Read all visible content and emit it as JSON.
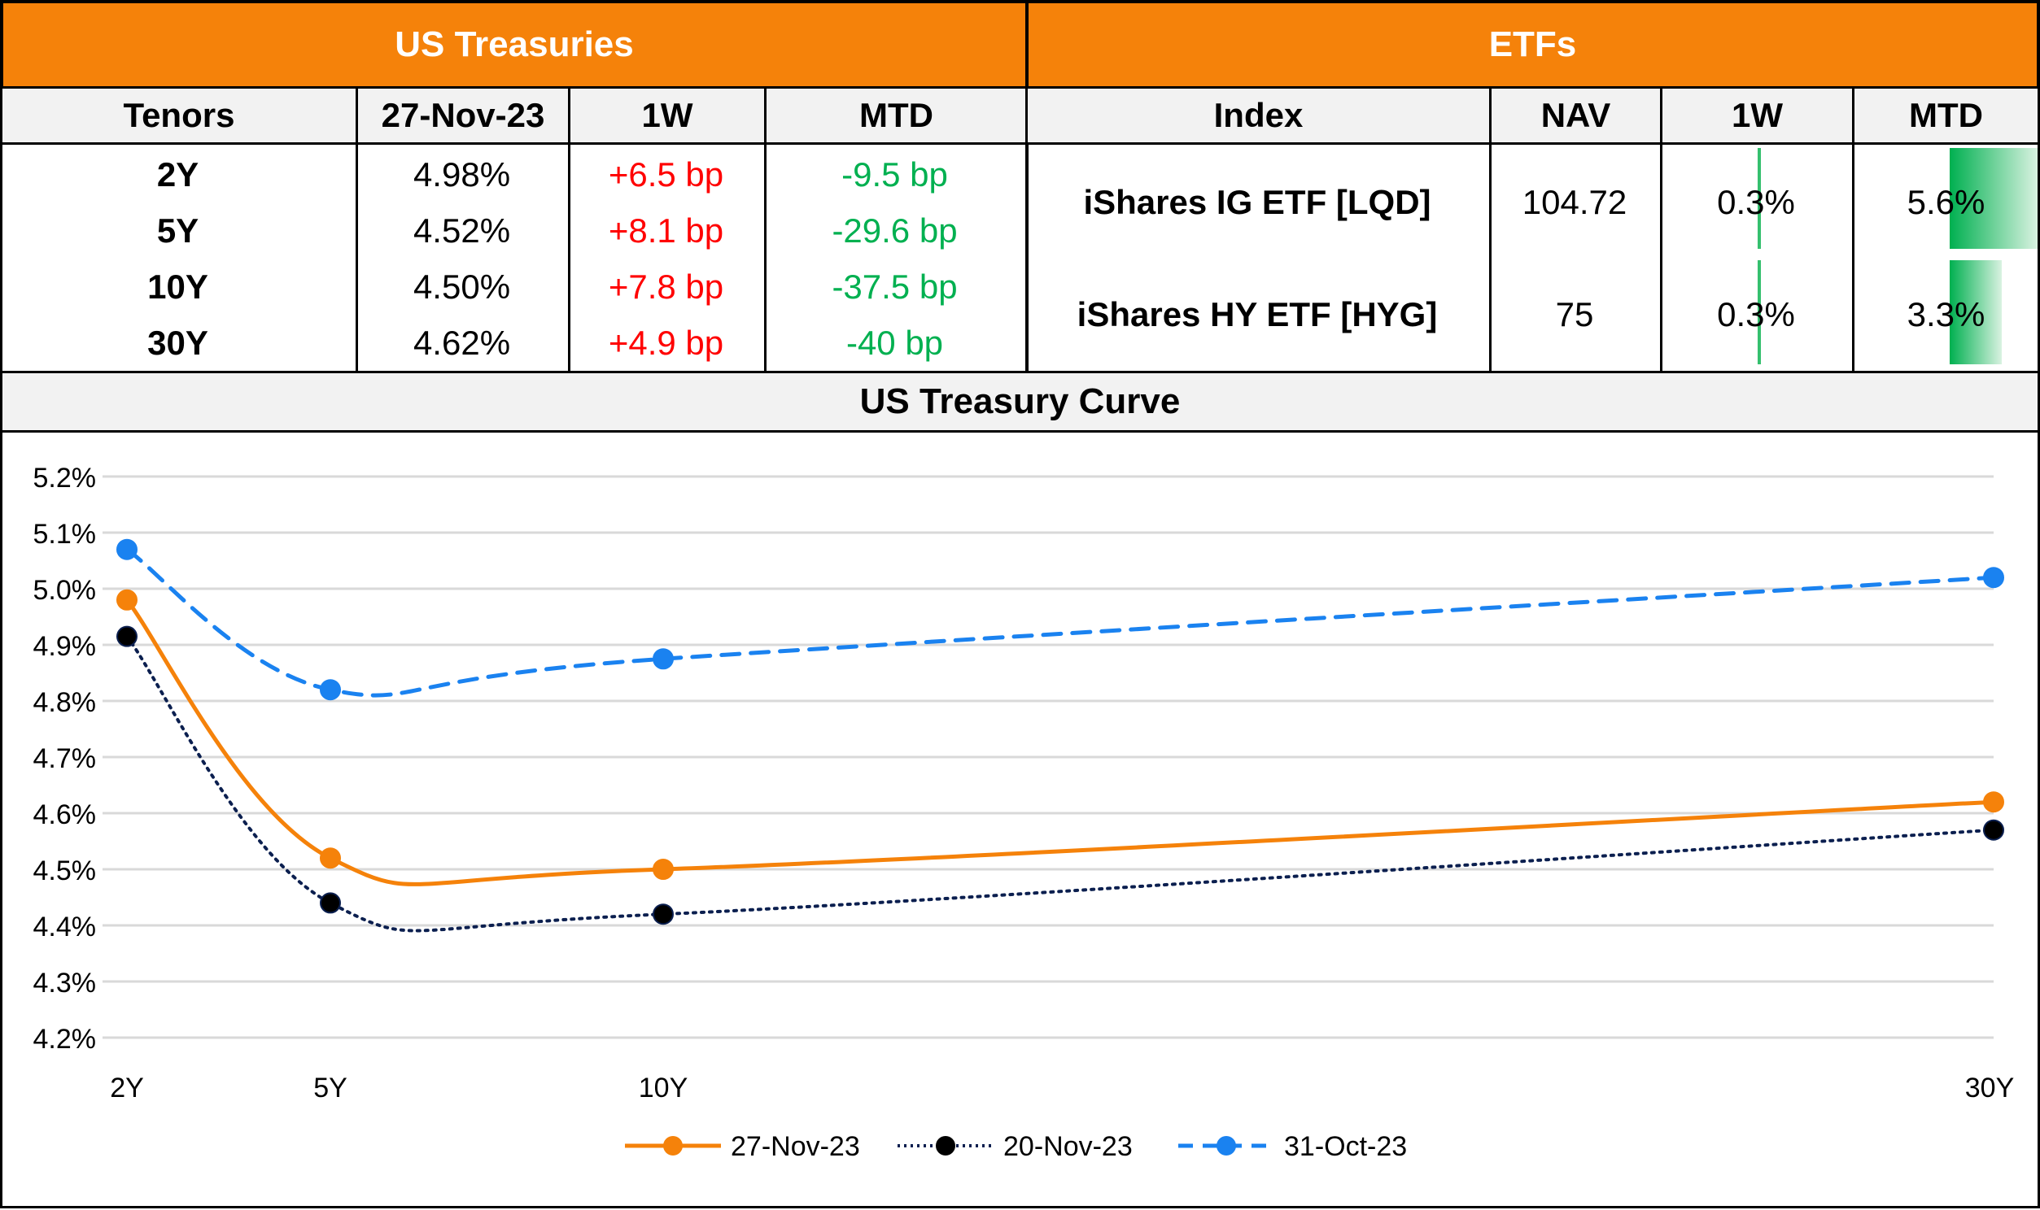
{
  "treasuries": {
    "title": "US Treasuries",
    "headers": [
      "Tenors",
      "27-Nov-23",
      "1W",
      "MTD"
    ],
    "rows": [
      {
        "tenor": "2Y",
        "yield": "4.98%",
        "w1": "+6.5 bp",
        "mtd": "-9.5 bp"
      },
      {
        "tenor": "5Y",
        "yield": "4.52%",
        "w1": "+8.1 bp",
        "mtd": "-29.6 bp"
      },
      {
        "tenor": "10Y",
        "yield": "4.50%",
        "w1": "+7.8 bp",
        "mtd": "-37.5 bp"
      },
      {
        "tenor": "30Y",
        "yield": "4.62%",
        "w1": "+4.9 bp",
        "mtd": "-40 bp"
      }
    ]
  },
  "etfs": {
    "title": "ETFs",
    "headers": [
      "Index",
      "NAV",
      "1W",
      "MTD"
    ],
    "rows": [
      {
        "index": "iShares IG ETF [LQD]",
        "nav": "104.72",
        "w1": "0.3%",
        "mtd": "5.6%",
        "w1_value": 0.3,
        "mtd_value": 5.6
      },
      {
        "index": "iShares HY ETF [HYG]",
        "nav": "75",
        "w1": "0.3%",
        "mtd": "3.3%",
        "w1_value": 0.3,
        "mtd_value": 3.3
      }
    ],
    "bar_max": 5.6
  },
  "colors": {
    "header": "#f5820a",
    "up": "#ff0000",
    "down": "#00b050",
    "bar": "#00b050"
  },
  "chart_data": {
    "type": "line",
    "title": "US Treasury Curve",
    "x": [
      "2Y",
      "5Y",
      "10Y",
      "30Y"
    ],
    "x_years": [
      2,
      5,
      10,
      30
    ],
    "xlabel": "",
    "ylabel": "",
    "ylim": [
      4.2,
      5.2
    ],
    "yticks": [
      "5.2%",
      "5.1%",
      "5.0%",
      "4.9%",
      "4.8%",
      "4.7%",
      "4.6%",
      "4.5%",
      "4.4%",
      "4.3%",
      "4.2%"
    ],
    "ytick_values": [
      5.2,
      5.1,
      5.0,
      4.9,
      4.8,
      4.7,
      4.6,
      4.5,
      4.4,
      4.3,
      4.2
    ],
    "grid": true,
    "legend": "bottom",
    "series": [
      {
        "name": "27-Nov-23",
        "values": [
          4.98,
          4.52,
          4.5,
          4.62
        ],
        "color": "#f5820a",
        "style": "solid"
      },
      {
        "name": "20-Nov-23",
        "values": [
          4.915,
          4.44,
          4.42,
          4.57
        ],
        "color": "#0b1f4f",
        "style": "dotted"
      },
      {
        "name": "31-Oct-23",
        "values": [
          5.07,
          4.82,
          4.875,
          5.02
        ],
        "color": "#1a82f0",
        "style": "dashed"
      }
    ]
  }
}
